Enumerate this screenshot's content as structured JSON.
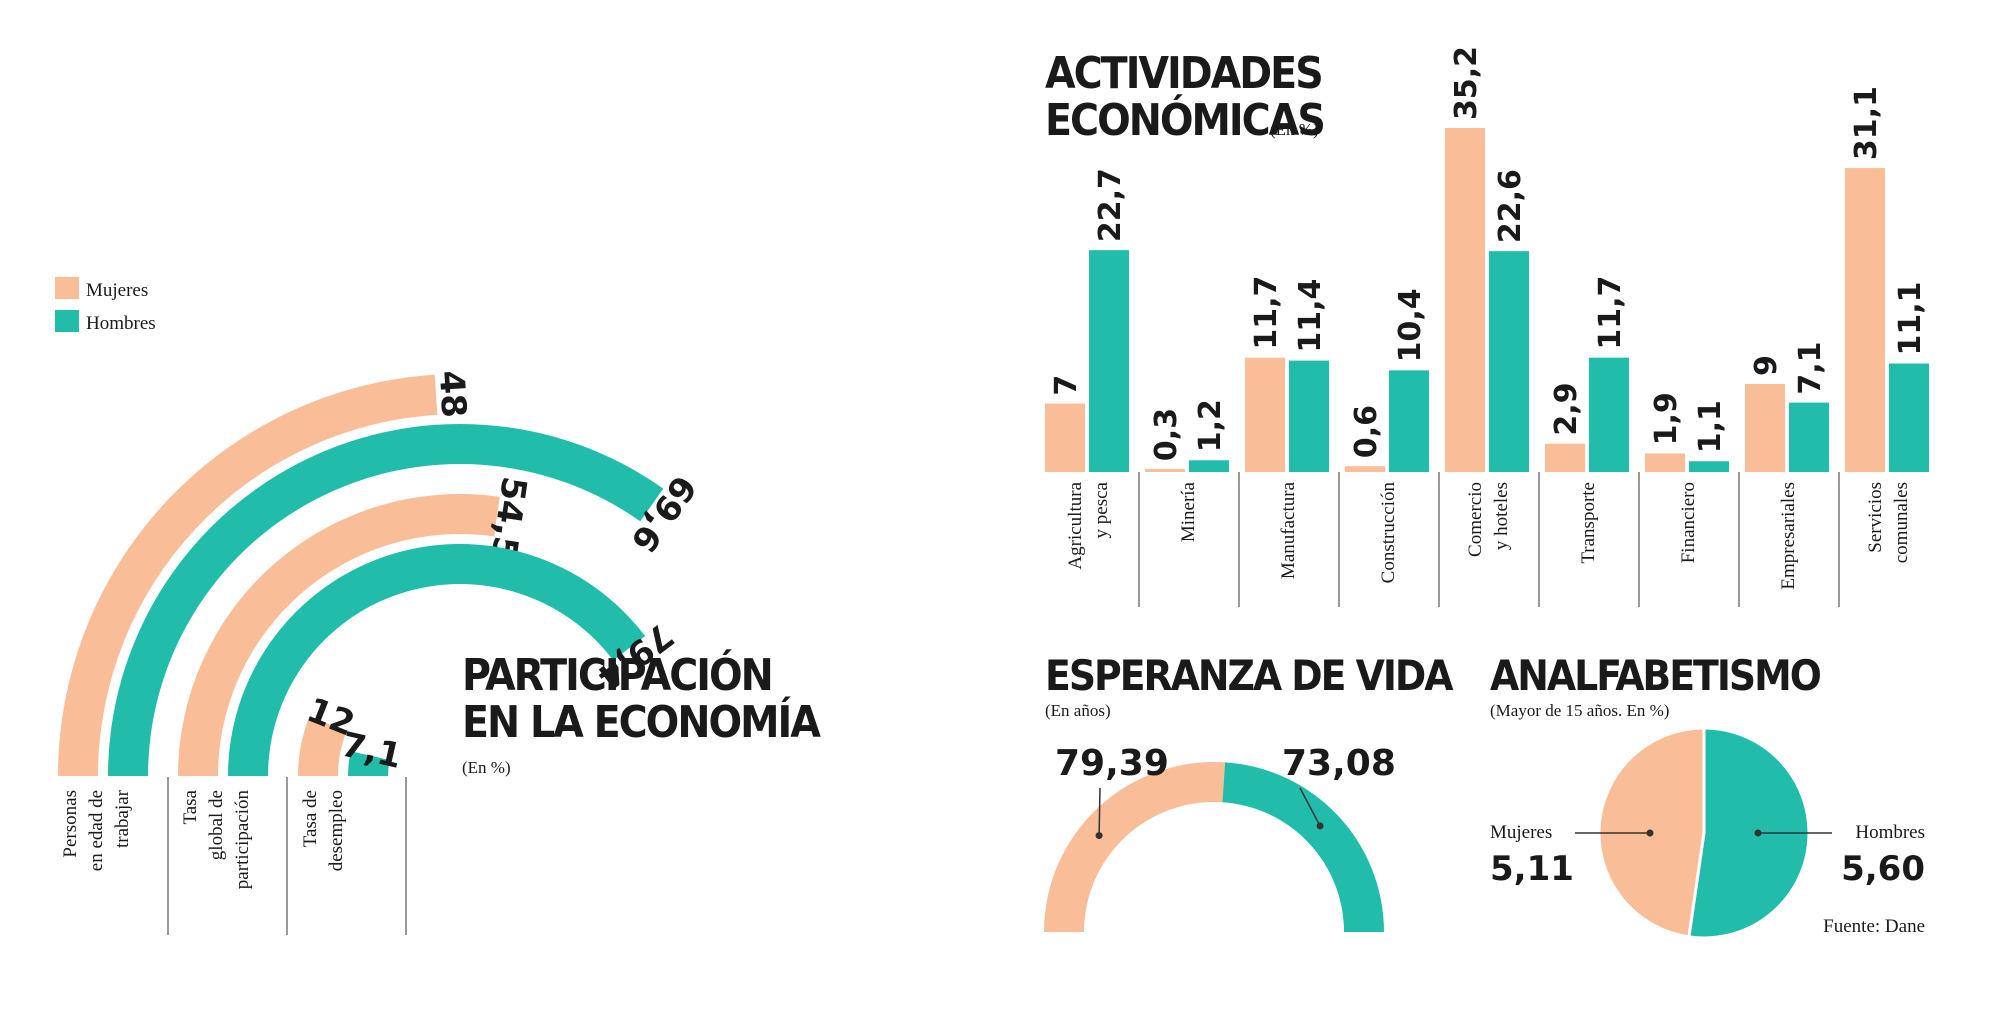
{
  "colors": {
    "mujeres": "#f9bd98",
    "hombres": "#22bcaa",
    "ink": "#1a1a1a"
  },
  "legend": {
    "mujeres": "Mujeres",
    "hombres": "Hombres"
  },
  "chart_data": [
    {
      "id": "participacion",
      "type": "bar",
      "subtype": "radial",
      "title_lines": [
        "PARTICIPACIÓN",
        "EN LA ECONOMÍA"
      ],
      "subtitle": "(En %)",
      "categories": [
        [
          "Personas",
          "en edad de",
          "trabajar"
        ],
        [
          "Tasa",
          "global de",
          "participación"
        ],
        [
          "Tasa de",
          "desempleo"
        ]
      ],
      "series": [
        {
          "name": "Mujeres",
          "values": [
            48,
            54.5,
            12
          ],
          "labels": [
            "48",
            "54,5",
            "12"
          ]
        },
        {
          "name": "Hombres",
          "values": [
            69.6,
            79.4,
            7.1
          ],
          "labels": [
            "69,6",
            "79,4",
            "7,1"
          ]
        }
      ],
      "scale_max": 100
    },
    {
      "id": "actividades",
      "type": "bar",
      "title_lines": [
        "ACTIVIDADES",
        "ECONÓMICAS"
      ],
      "subtitle": "(En %)",
      "categories": [
        [
          "Agricultura",
          "y pesca"
        ],
        [
          "Minería"
        ],
        [
          "Manufactura"
        ],
        [
          "Construcción"
        ],
        [
          "Comercio",
          "y hoteles"
        ],
        [
          "Transporte"
        ],
        [
          "Financiero"
        ],
        [
          "Empresariales"
        ],
        [
          "Servicios",
          "comunales"
        ]
      ],
      "series": [
        {
          "name": "Mujeres",
          "values": [
            7,
            0.3,
            11.7,
            0.6,
            35.2,
            2.9,
            1.9,
            9,
            31.1
          ],
          "labels": [
            "7",
            "0,3",
            "11,7",
            "0,6",
            "35,2",
            "2,9",
            "1,9",
            "9",
            "31,1"
          ]
        },
        {
          "name": "Hombres",
          "values": [
            22.7,
            1.2,
            11.4,
            10.4,
            22.6,
            11.7,
            1.1,
            7.1,
            11.1
          ],
          "labels": [
            "22,7",
            "1,2",
            "11,4",
            "10,4",
            "22,6",
            "11,7",
            "1,1",
            "7,1",
            "11,1"
          ]
        }
      ],
      "ylim": [
        0,
        35.2
      ]
    },
    {
      "id": "esperanza",
      "type": "pie",
      "subtype": "semi-donut",
      "title": "ESPERANZA DE VIDA",
      "subtitle": "(En años)",
      "values": [
        79.39,
        73.08
      ],
      "labels": [
        "79,39",
        "73,08"
      ],
      "series_names": [
        "Mujeres",
        "Hombres"
      ]
    },
    {
      "id": "analfabetismo",
      "type": "pie",
      "title": "ANALFABETISMO",
      "subtitle": "(Mayor de 15 años. En %)",
      "values": [
        5.11,
        5.6
      ],
      "labels": [
        "5,11",
        "5,60"
      ],
      "slice_names": [
        "Mujeres",
        "Hombres"
      ]
    }
  ],
  "source": "Fuente: Dane"
}
